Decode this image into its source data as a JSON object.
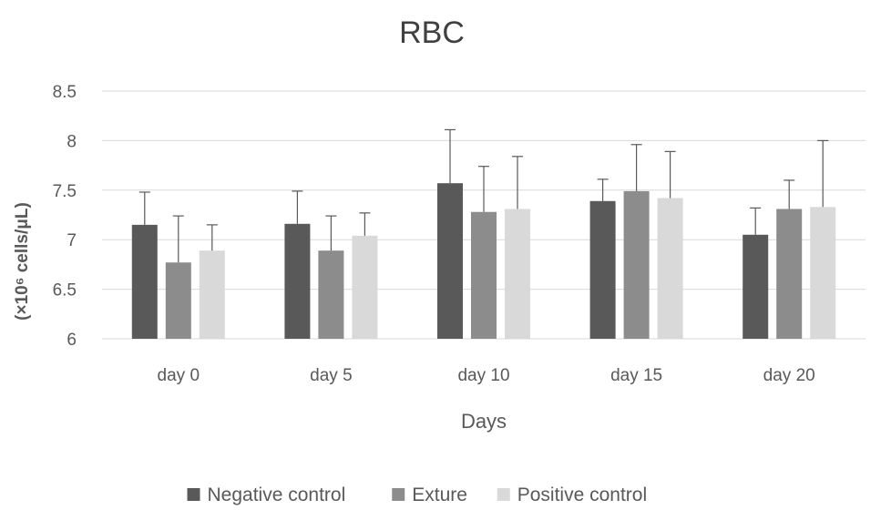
{
  "chart_data": {
    "type": "bar",
    "title": "RBC",
    "xlabel": "Days",
    "ylabel": "(×10⁶ cells/μL)",
    "categories": [
      "day 0",
      "day 5",
      "day 10",
      "day 15",
      "day 20"
    ],
    "ylim": [
      6,
      8.5
    ],
    "yticks": [
      6,
      6.5,
      7,
      7.5,
      8,
      8.5
    ],
    "ytick_labels": [
      "6",
      "6.5",
      "7",
      "7.5",
      "8",
      "8.5"
    ],
    "grid": true,
    "legend_position": "bottom",
    "series": [
      {
        "name": "Negative control",
        "color": "#595959",
        "values": [
          7.15,
          7.16,
          7.57,
          7.39,
          7.05
        ],
        "error": [
          0.33,
          0.33,
          0.54,
          0.22,
          0.27
        ]
      },
      {
        "name": "Exture",
        "color": "#8c8c8c",
        "values": [
          6.77,
          6.89,
          7.28,
          7.49,
          7.31
        ],
        "error": [
          0.47,
          0.35,
          0.46,
          0.47,
          0.29
        ]
      },
      {
        "name": "Positive control",
        "color": "#d9d9d9",
        "values": [
          6.89,
          7.04,
          7.31,
          7.42,
          7.33
        ],
        "error": [
          0.26,
          0.23,
          0.53,
          0.47,
          0.67
        ]
      }
    ]
  }
}
